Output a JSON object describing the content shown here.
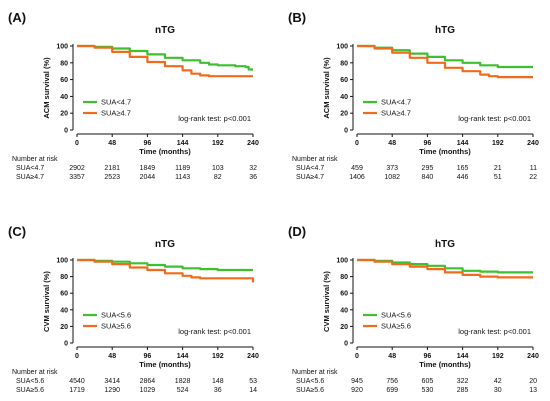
{
  "chart_data": [
    {
      "type": "line",
      "panel": "(A)",
      "title": "nTG",
      "xlabel": "Time (months)",
      "ylabel": "ACM survival  (%)",
      "xlim": [
        0,
        240
      ],
      "ylim": [
        0,
        100
      ],
      "xticks": [
        0,
        48,
        96,
        144,
        192,
        240
      ],
      "yticks": [
        0,
        20,
        40,
        60,
        80,
        100
      ],
      "stat": "log-rank test: p<0.001",
      "risk_title": "Number at risk",
      "series": [
        {
          "name": "SUA<4.7",
          "color": "#3dbf2f",
          "x": [
            0,
            24,
            48,
            72,
            96,
            120,
            144,
            168,
            180,
            192,
            216,
            230,
            234,
            240
          ],
          "y": [
            100,
            99,
            97,
            94,
            90,
            86,
            83,
            80,
            78,
            77,
            76,
            75,
            72,
            72
          ],
          "risk": [
            "2902",
            "2181",
            "1849",
            "1189",
            "103",
            "32"
          ]
        },
        {
          "name": "SUA≥4.7",
          "color": "#f26b1d",
          "x": [
            0,
            24,
            48,
            72,
            96,
            120,
            144,
            156,
            168,
            180,
            192,
            216,
            240
          ],
          "y": [
            100,
            98,
            93,
            87,
            81,
            76,
            71,
            67,
            65,
            64,
            64,
            64,
            64
          ],
          "risk": [
            "3357",
            "2523",
            "2044",
            "1143",
            "82",
            "36"
          ]
        }
      ]
    },
    {
      "type": "line",
      "panel": "(B)",
      "title": "hTG",
      "xlabel": "Time (months)",
      "ylabel": "ACM survival  (%)",
      "xlim": [
        0,
        240
      ],
      "ylim": [
        0,
        100
      ],
      "xticks": [
        0,
        48,
        96,
        144,
        192,
        240
      ],
      "yticks": [
        0,
        20,
        40,
        60,
        80,
        100
      ],
      "stat": "log-rank test: p<0.001",
      "risk_title": "Number at risk",
      "series": [
        {
          "name": "SUA<4.7",
          "color": "#3dbf2f",
          "x": [
            0,
            24,
            48,
            72,
            96,
            120,
            144,
            168,
            192,
            216,
            240
          ],
          "y": [
            100,
            98,
            95,
            91,
            87,
            83,
            80,
            77,
            75,
            75,
            75
          ],
          "risk": [
            "459",
            "373",
            "295",
            "165",
            "21",
            "11"
          ]
        },
        {
          "name": "SUA≥4.7",
          "color": "#f26b1d",
          "x": [
            0,
            24,
            48,
            72,
            96,
            120,
            144,
            168,
            180,
            192,
            216,
            240
          ],
          "y": [
            100,
            97,
            92,
            86,
            80,
            74,
            70,
            66,
            64,
            63,
            63,
            63
          ],
          "risk": [
            "1406",
            "1082",
            "840",
            "446",
            "51",
            "22"
          ]
        }
      ]
    },
    {
      "type": "line",
      "panel": "(C)",
      "title": "nTG",
      "xlabel": "Time (months)",
      "ylabel": "CVM survival  (%)",
      "xlim": [
        0,
        240
      ],
      "ylim": [
        0,
        100
      ],
      "xticks": [
        0,
        48,
        96,
        144,
        192,
        240
      ],
      "yticks": [
        0,
        20,
        40,
        60,
        80,
        100
      ],
      "stat": "log-rank test: p<0.001",
      "risk_title": "Number at risk",
      "series": [
        {
          "name": "SUA<5.6",
          "color": "#3dbf2f",
          "x": [
            0,
            24,
            48,
            72,
            96,
            120,
            144,
            168,
            192,
            216,
            240
          ],
          "y": [
            100,
            99,
            98,
            96,
            94,
            92,
            90,
            89,
            88,
            88,
            88
          ],
          "risk": [
            "4540",
            "3414",
            "2864",
            "1828",
            "148",
            "53"
          ]
        },
        {
          "name": "SUA≥5.6",
          "color": "#f26b1d",
          "x": [
            0,
            24,
            48,
            72,
            96,
            120,
            144,
            156,
            168,
            192,
            216,
            238,
            240
          ],
          "y": [
            100,
            98,
            95,
            91,
            88,
            84,
            81,
            79,
            78,
            78,
            78,
            78,
            73
          ],
          "risk": [
            "1719",
            "1290",
            "1029",
            "524",
            "36",
            "14"
          ]
        }
      ]
    },
    {
      "type": "line",
      "panel": "(D)",
      "title": "hTG",
      "xlabel": "Time (months)",
      "ylabel": "CVM survival  (%)",
      "xlim": [
        0,
        240
      ],
      "ylim": [
        0,
        100
      ],
      "xticks": [
        0,
        48,
        96,
        144,
        192,
        240
      ],
      "yticks": [
        0,
        20,
        40,
        60,
        80,
        100
      ],
      "stat": "log-rank test: p<0.001",
      "risk_title": "Number at risk",
      "series": [
        {
          "name": "SUA<5.6",
          "color": "#3dbf2f",
          "x": [
            0,
            24,
            48,
            72,
            96,
            120,
            144,
            168,
            192,
            216,
            240
          ],
          "y": [
            100,
            99,
            97,
            95,
            93,
            90,
            87,
            86,
            85,
            85,
            85
          ],
          "risk": [
            "945",
            "756",
            "605",
            "322",
            "42",
            "20"
          ]
        },
        {
          "name": "SUA≥5.6",
          "color": "#f26b1d",
          "x": [
            0,
            24,
            48,
            72,
            96,
            120,
            144,
            168,
            192,
            216,
            240
          ],
          "y": [
            100,
            98,
            95,
            92,
            89,
            85,
            82,
            80,
            79,
            79,
            79
          ],
          "risk": [
            "920",
            "699",
            "530",
            "285",
            "30",
            "13"
          ]
        }
      ]
    }
  ]
}
